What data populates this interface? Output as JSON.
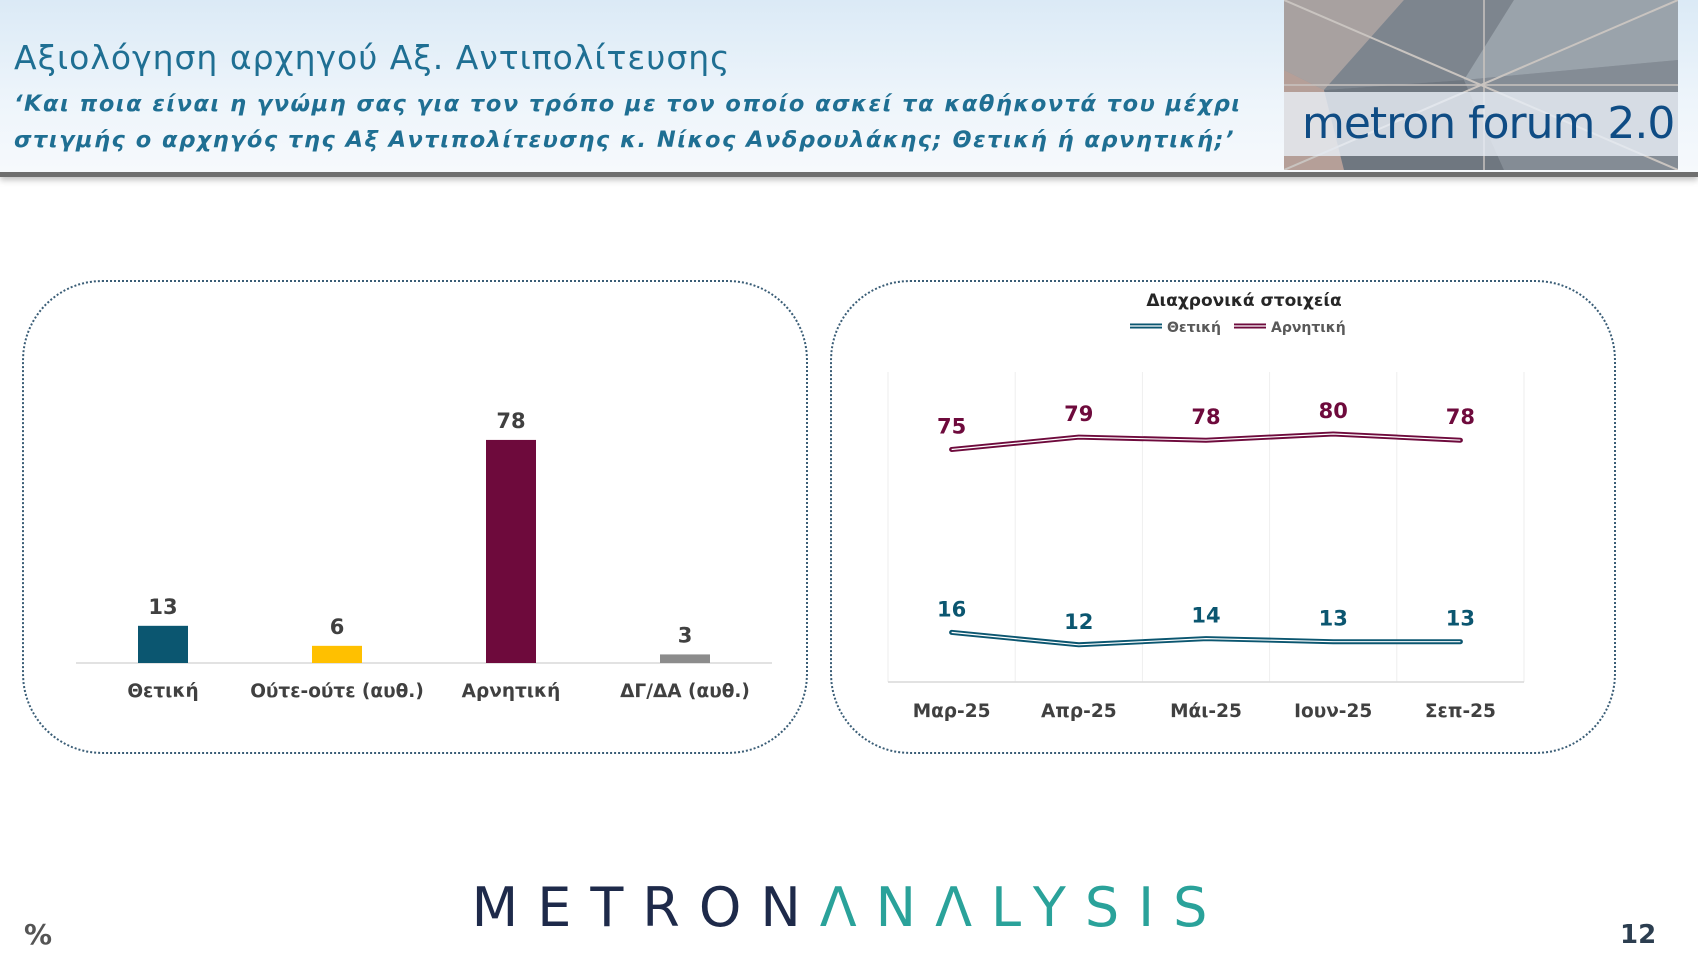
{
  "header": {
    "title": "Αξιολόγηση αρχηγού Αξ. Αντιπολίτευσης",
    "question": "‘Και ποια είναι η γνώμη σας για τον τρόπο με τον οποίο ασκεί τα καθήκοντά του μέχρι στιγμής ο αρχηγός της Αξ Αντιπολίτευσης κ. Νίκος Ανδρουλάκης; Θετική ή αρνητική;’",
    "logo_text": "metron forum 2.0"
  },
  "footer": {
    "percent_label": "%",
    "brand_part1": "METRON",
    "brand_part2": "ΛNΛLYSIS",
    "page_number": "12"
  },
  "colors": {
    "positive": "#0b5670",
    "neither": "#ffc000",
    "negative": "#6e0a3c",
    "dkna": "#8c8c8c",
    "header_text": "#1f6f93"
  },
  "chart_data": [
    {
      "type": "bar",
      "title": "",
      "categories": [
        "Θετική",
        "Ούτε-ούτε (αυθ.)",
        "Αρνητική",
        "ΔΓ/ΔΑ (αυθ.)"
      ],
      "values": [
        13,
        6,
        78,
        3
      ],
      "colors": [
        "#0b5670",
        "#ffc000",
        "#6e0a3c",
        "#8c8c8c"
      ],
      "ylim": [
        0,
        100
      ],
      "grid": false,
      "data_labels": true
    },
    {
      "type": "line",
      "title": "Διαχρονικά στοιχεία",
      "x": [
        "Μαρ-25",
        "Απρ-25",
        "Μάι-25",
        "Ιουν-25",
        "Σεπ-25"
      ],
      "series": [
        {
          "name": "Θετική",
          "values": [
            16,
            12,
            14,
            13,
            13
          ],
          "color": "#0b5670"
        },
        {
          "name": "Αρνητική",
          "values": [
            75,
            79,
            78,
            80,
            78
          ],
          "color": "#6e0a3c"
        }
      ],
      "ylim": [
        0,
        100
      ],
      "legend": "top-center",
      "grid": true,
      "data_labels": true
    }
  ]
}
